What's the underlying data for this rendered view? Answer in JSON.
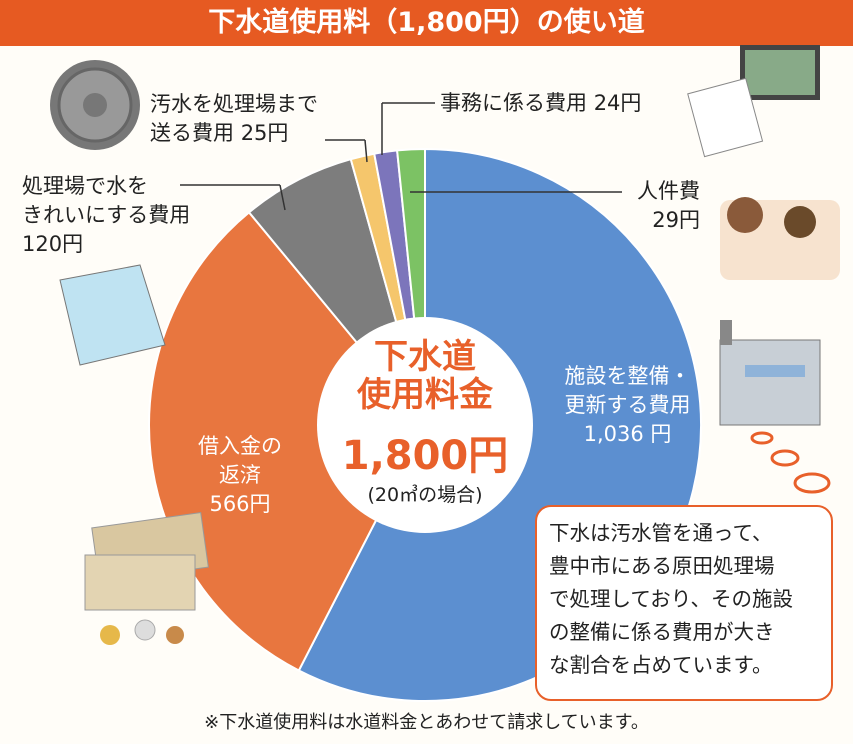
{
  "chart_data": {
    "type": "pie",
    "title": "下水道使用料（1,800円）の使い道",
    "categories": [
      "施設を整備・\n更新する費用",
      "借入金の\n返済",
      "処理場で水を\nきれいにする費用",
      "汚水を処理場まで\n送る費用",
      "事務に係る費用",
      "人件費"
    ],
    "values": [
      1036,
      566,
      120,
      25,
      24,
      29
    ],
    "value_labels": [
      "1,036 円",
      "566円",
      "120円",
      "25円",
      "24円",
      "29円"
    ],
    "colors": [
      "#5c8fd0",
      "#e8763f",
      "#7d7d7d",
      "#f5c66c",
      "#7c75bb",
      "#7cc264"
    ],
    "center": {
      "title": "下水道\n使用料金",
      "amount": "1,800円",
      "note": "(20㎥の場合)"
    },
    "note_box": "下水は汚水管を通って、\n豊中市にある原田処理場\nで処理しており、その施設\nの整備に係る費用が大き\nな割合を占めています。",
    "footnote": "※下水道使用料は水道料金とあわせて請求しています。"
  }
}
